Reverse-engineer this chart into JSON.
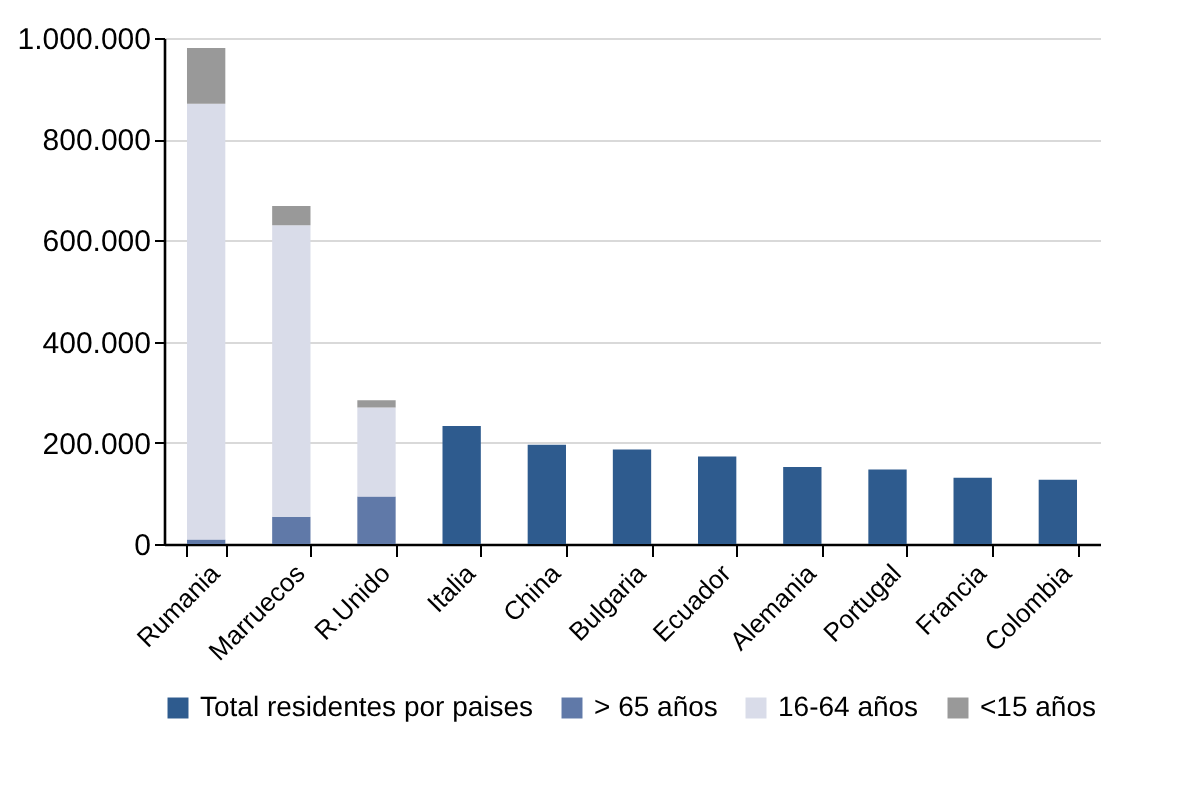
{
  "chart_data": {
    "type": "bar",
    "stacked": true,
    "categories": [
      "Rumania",
      "Marruecos",
      "R.Unido",
      "Italia",
      "China",
      "Bulgaria",
      "Ecuador",
      "Alemania",
      "Portugal",
      "Francia",
      "Colombia"
    ],
    "series": [
      {
        "name": "Total residentes por paises",
        "color": "#2e5b8e",
        "values": [
          null,
          null,
          null,
          233000,
          196000,
          187000,
          173000,
          152000,
          147000,
          131000,
          127000
        ]
      },
      {
        "name": "> 65 años",
        "color": "#6079a8",
        "values": [
          9000,
          54000,
          94000,
          null,
          null,
          null,
          null,
          null,
          null,
          null,
          null
        ]
      },
      {
        "name": "16-64 años",
        "color": "#d9dce9",
        "values": [
          861000,
          576000,
          176000,
          null,
          null,
          null,
          null,
          null,
          null,
          null,
          null
        ]
      },
      {
        "name": "<15 años",
        "color": "#999999",
        "values": [
          110000,
          38000,
          14000,
          null,
          null,
          null,
          null,
          null,
          null,
          null,
          null
        ]
      }
    ],
    "ylim": [
      0,
      1000000
    ],
    "yticks": [
      {
        "value": 0,
        "label": "0"
      },
      {
        "value": 200000,
        "label": "200.000"
      },
      {
        "value": 400000,
        "label": "400.000"
      },
      {
        "value": 600000,
        "label": "600.000"
      },
      {
        "value": 800000,
        "label": "800.000"
      },
      {
        "value": 1000000,
        "label": "1.000.000"
      }
    ],
    "grid": "y",
    "legend": "bottom"
  }
}
